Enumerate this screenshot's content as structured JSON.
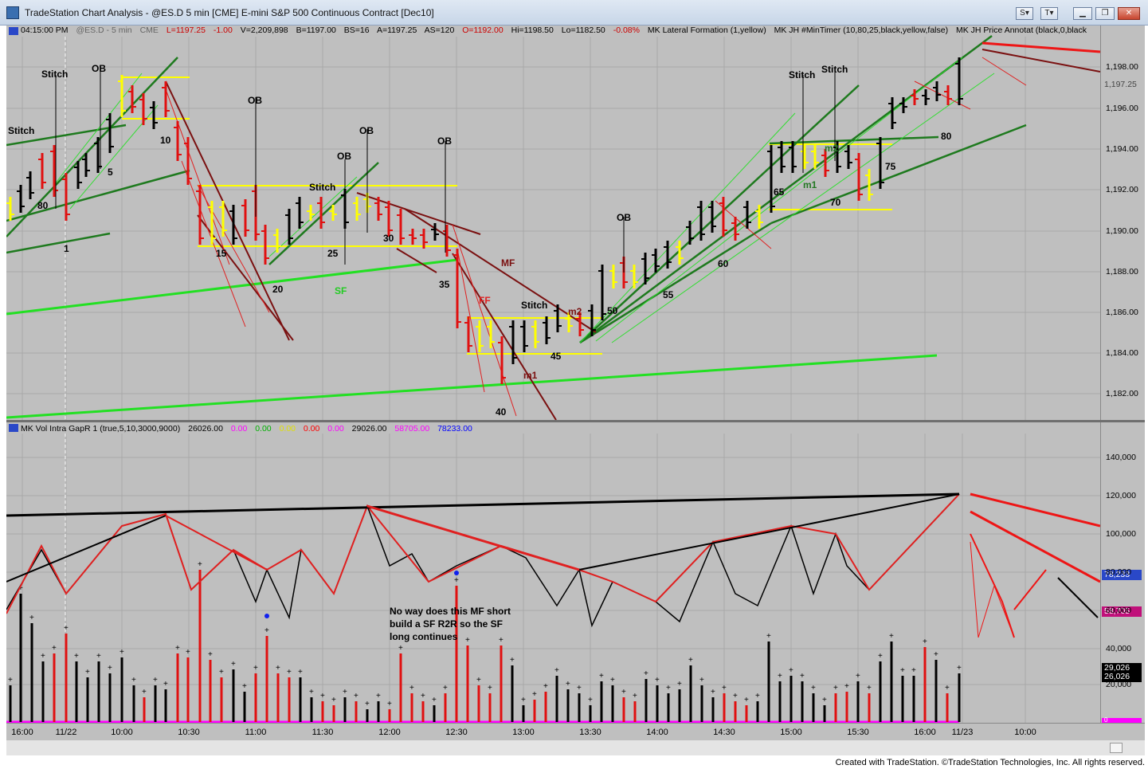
{
  "window": {
    "title": "TradeStation Chart Analysis - @ES.D 5 min [CME] E-mini S&P 500 Continuous Contract [Dec10]",
    "buttons": [
      "S",
      "T"
    ]
  },
  "price_pane": {
    "status": {
      "time": "04:15:00 PM",
      "symbol": "@ES.D - 5 min",
      "exchange": "CME",
      "last": "L=1197.25",
      "change": "-1.00",
      "volume": "V=2,209,898",
      "bid": "B=1197.00",
      "bid_size": "BS=16",
      "ask": "A=1197.25",
      "ask_size": "AS=120",
      "open": "O=1192.00",
      "high": "Hi=1198.50",
      "low": "Lo=1182.50",
      "pct": "-0.08%",
      "ind1": "MK Lateral Formation (1,yellow)",
      "ind2": "MK JH #MinTimer (10,80,25,black,yellow,false)",
      "ind3": "MK JH Price Annotat (black,0,black"
    },
    "price_labels": [
      "1,198.00",
      "1,196.00",
      "1,194.00",
      "1,192.00",
      "1,190.00",
      "1,188.00",
      "1,186.00",
      "1,184.00",
      "1,182.00"
    ],
    "last_price_badge": "1,197.25",
    "annotations": [
      {
        "text": "Stitch",
        "color": "#000000"
      },
      {
        "text": "Stitch",
        "color": "#000000"
      },
      {
        "text": "OB",
        "color": "#000000"
      },
      {
        "text": "80",
        "color": "#000000"
      },
      {
        "text": "1",
        "color": "#000000"
      },
      {
        "text": "5",
        "color": "#000000"
      },
      {
        "text": "10",
        "color": "#000000"
      },
      {
        "text": "OB",
        "color": "#000000"
      },
      {
        "text": "OB",
        "color": "#000000"
      },
      {
        "text": "OB",
        "color": "#000000"
      },
      {
        "text": "Stitch",
        "color": "#000000"
      },
      {
        "text": "OB",
        "color": "#000000"
      },
      {
        "text": "15",
        "color": "#000000"
      },
      {
        "text": "20",
        "color": "#000000"
      },
      {
        "text": "25",
        "color": "#000000"
      },
      {
        "text": "30",
        "color": "#000000"
      },
      {
        "text": "35",
        "color": "#000000"
      },
      {
        "text": "SF",
        "color": "#22cc22"
      },
      {
        "text": "MF",
        "color": "#7a1010"
      },
      {
        "text": "FF",
        "color": "#e02020"
      },
      {
        "text": "Stitch",
        "color": "#000000"
      },
      {
        "text": "m2",
        "color": "#7a1010"
      },
      {
        "text": "45",
        "color": "#000000"
      },
      {
        "text": "m1",
        "color": "#7a1010"
      },
      {
        "text": "40",
        "color": "#000000"
      },
      {
        "text": "OB",
        "color": "#000000"
      },
      {
        "text": "50",
        "color": "#000000"
      },
      {
        "text": "55",
        "color": "#000000"
      },
      {
        "text": "60",
        "color": "#000000"
      },
      {
        "text": "Stitch",
        "color": "#000000"
      },
      {
        "text": "Stitch",
        "color": "#000000"
      },
      {
        "text": "65",
        "color": "#000000"
      },
      {
        "text": "m2",
        "color": "#227722"
      },
      {
        "text": "m1",
        "color": "#227722"
      },
      {
        "text": "70",
        "color": "#000000"
      },
      {
        "text": "75",
        "color": "#000000"
      },
      {
        "text": "80",
        "color": "#000000"
      }
    ]
  },
  "volume_pane": {
    "status": {
      "name": "MK Vol Intra GapR 1 (true,5,10,3000,9000)",
      "v1": "26026.00",
      "v2": "0.00",
      "v3": "0.00",
      "v4": "0.00",
      "v5": "0.00",
      "v6": "0.00",
      "v7": "29026.00",
      "v8": "58705.00",
      "v9": "78233.00"
    },
    "colors": {
      "v2": "#ff00ff",
      "v3": "#00cc00",
      "v4": "#ffff00",
      "v5": "#ff0000",
      "v6": "#ff00ff",
      "v8": "#ff00ff",
      "v9": "#0000ff"
    },
    "labels": [
      "140,000",
      "120,000",
      "100,000",
      "80,000",
      "60,000",
      "40,000",
      "20,000"
    ],
    "badges": [
      {
        "text": "78,233",
        "bg": "#2a48c8",
        "fg": "#ffffff"
      },
      {
        "text": "58,705",
        "bg": "#c0107a",
        "fg": "#ffffff"
      },
      {
        "text": "29,026",
        "bg": "#000000",
        "fg": "#ffffff"
      },
      {
        "text": "26,026",
        "bg": "#000000",
        "fg": "#ffffff"
      },
      {
        "text": "0",
        "bg": "#ff00ff",
        "fg": "#ffffff"
      }
    ],
    "note": [
      "No way does this MF short",
      "build a SF R2R so the SF",
      "long continues"
    ]
  },
  "time_axis": [
    "16:00",
    "11/22",
    "10:00",
    "10:30",
    "11:00",
    "11:30",
    "12:00",
    "12:30",
    "13:00",
    "13:30",
    "14:00",
    "14:30",
    "15:00",
    "15:30",
    "16:00",
    "11/23",
    "10:00"
  ],
  "credit": "Created with TradeStation. ©TradeStation Technologies, Inc. All rights reserved."
}
